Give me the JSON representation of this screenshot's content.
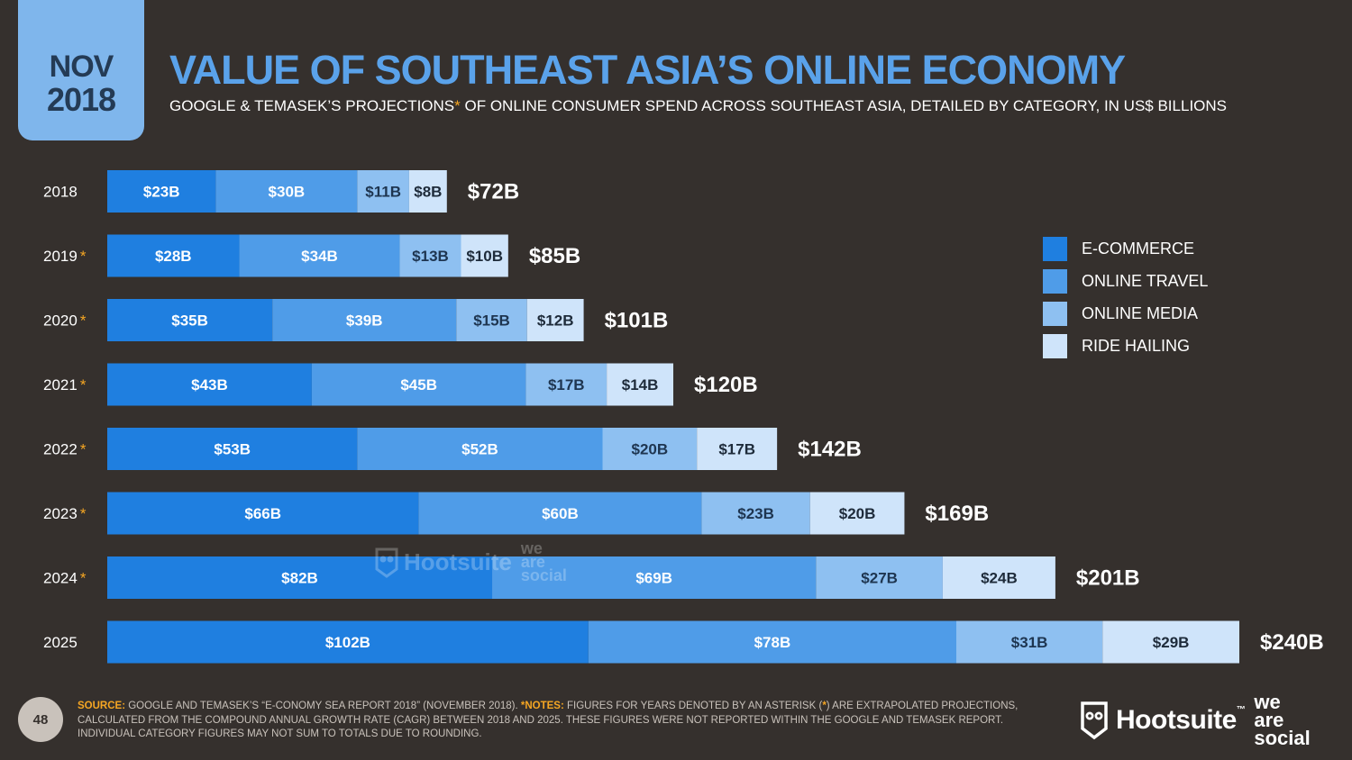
{
  "badge": {
    "month": "NOV",
    "year": "2018"
  },
  "header": {
    "title": "VALUE OF SOUTHEAST ASIA’S ONLINE ECONOMY",
    "subtitle_pre": "GOOGLE & TEMASEK’S PROJECTIONS",
    "subtitle_asterisk": "*",
    "subtitle_post": " OF ONLINE CONSUMER SPEND ACROSS SOUTHEAST ASIA, DETAILED BY CATEGORY, IN US$ BILLIONS"
  },
  "chart_data": {
    "type": "bar",
    "orientation": "horizontal",
    "stacked": true,
    "categories": [
      "2018",
      "2019",
      "2020",
      "2021",
      "2022",
      "2023",
      "2024",
      "2025"
    ],
    "projected": [
      false,
      true,
      true,
      true,
      true,
      true,
      true,
      false
    ],
    "series": [
      {
        "name": "E-COMMERCE",
        "color": "#1f7fe0",
        "values": [
          23,
          28,
          35,
          43,
          53,
          66,
          82,
          102
        ]
      },
      {
        "name": "ONLINE TRAVEL",
        "color": "#4f9ce8",
        "values": [
          30,
          34,
          39,
          45,
          52,
          60,
          69,
          78
        ]
      },
      {
        "name": "ONLINE MEDIA",
        "color": "#8ec0f1",
        "values": [
          11,
          13,
          15,
          17,
          20,
          23,
          27,
          31
        ]
      },
      {
        "name": "RIDE HAILING",
        "color": "#cfe4fa",
        "values": [
          8,
          10,
          12,
          14,
          17,
          20,
          24,
          29
        ]
      }
    ],
    "totals": [
      72,
      85,
      101,
      120,
      142,
      169,
      201,
      240
    ],
    "value_prefix": "$",
    "value_suffix": "B",
    "legend_position": "right",
    "grid": false,
    "xlim": [
      0,
      240
    ]
  },
  "watermark": {
    "hootsuite": "Hootsuite",
    "wearesocial": [
      "we",
      "are",
      "social"
    ]
  },
  "footer": {
    "page_number": "48",
    "source_label": "SOURCE:",
    "source_text": " GOOGLE AND TEMASEK’S “E-CONOMY SEA REPORT 2018” (NOVEMBER 2018). ",
    "notes_label": "*NOTES:",
    "notes_text_1": " FIGURES FOR YEARS DENOTED BY AN ASTERISK (",
    "notes_asterisk": "*",
    "notes_text_2": ") ARE EXTRAPOLATED PROJECTIONS, CALCULATED FROM THE COMPOUND ANNUAL GROWTH RATE (CAGR) BETWEEN 2018 AND 2025. THESE FIGURES WERE NOT REPORTED WITHIN THE GOOGLE AND TEMASEK REPORT. INDIVIDUAL CATEGORY FIGURES MAY NOT SUM TO TOTALS DUE TO ROUNDING.",
    "brand": "Hootsuite",
    "brand_tm": "™",
    "brand2": [
      "we",
      "are",
      "social"
    ]
  }
}
